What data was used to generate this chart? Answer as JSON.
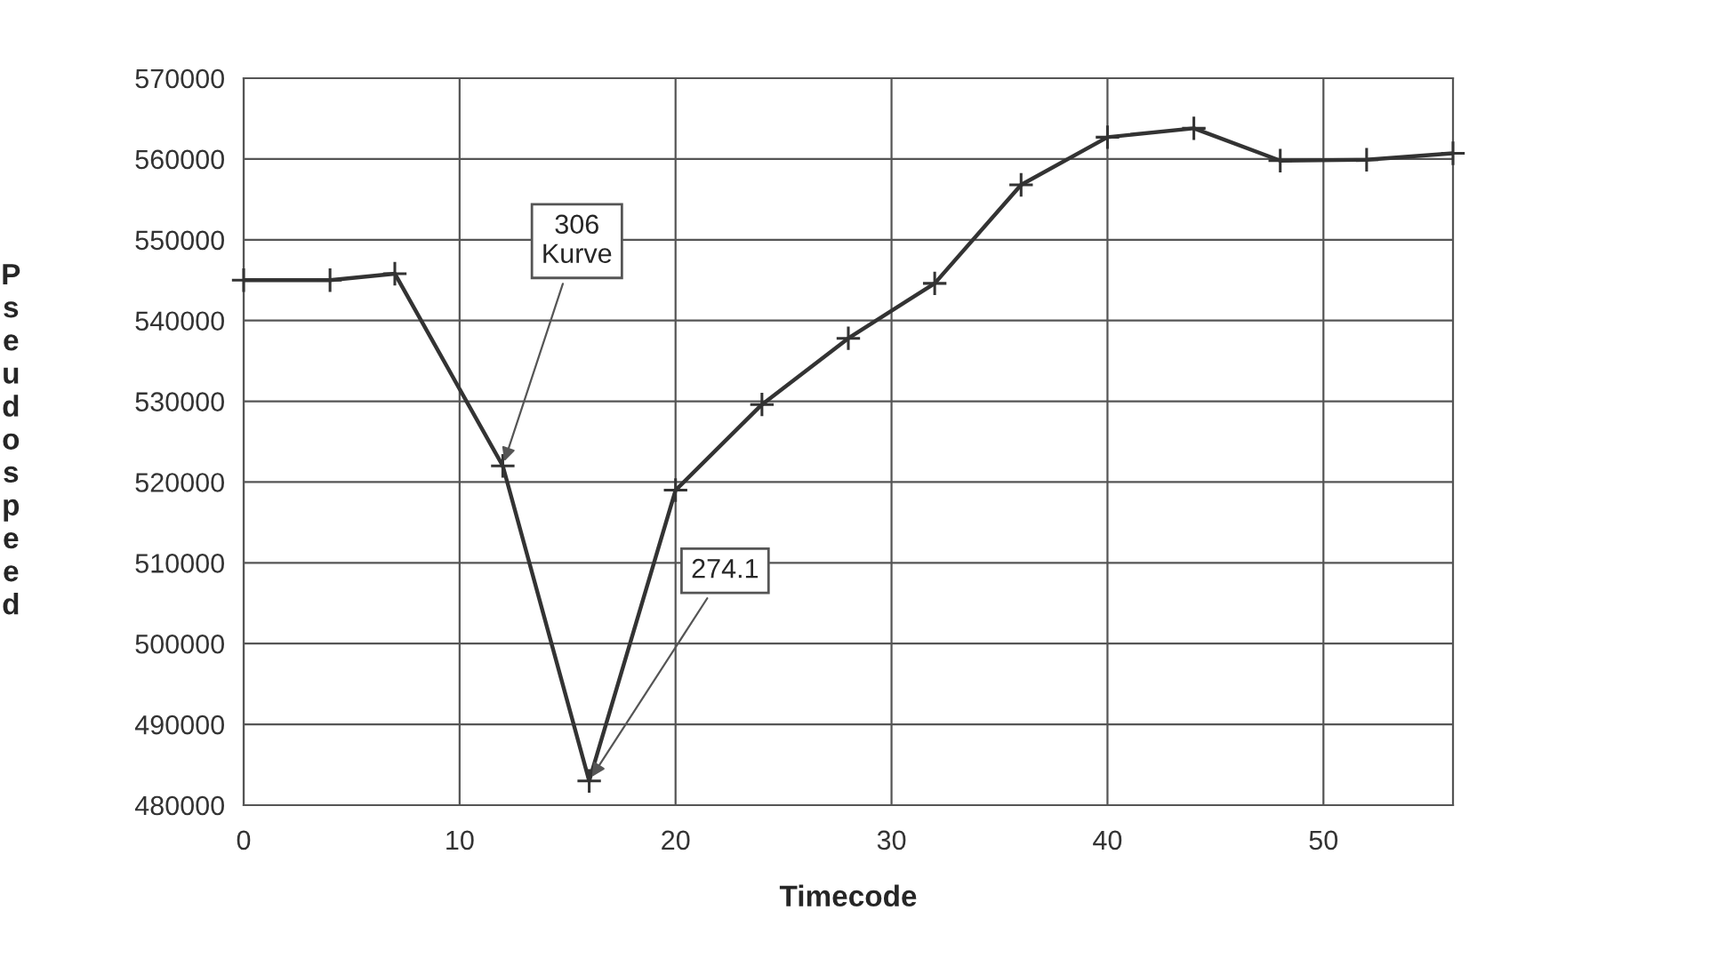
{
  "chart_data": {
    "type": "line",
    "xlabel": "Timecode",
    "ylabel": "Pseudospeed",
    "x": [
      0,
      4,
      7,
      12,
      16,
      20,
      24,
      28,
      32,
      36,
      40,
      44,
      48,
      52,
      56
    ],
    "series": [
      {
        "color": "#333333",
        "values": [
          545000,
          545000,
          545800,
          522000,
          483000,
          519000,
          529600,
          537800,
          544600,
          556800,
          562700,
          563800,
          559800,
          559900,
          560700
        ]
      }
    ],
    "xlim": [
      0,
      56
    ],
    "xticks": [
      0,
      10,
      20,
      30,
      40,
      50
    ],
    "ylim": [
      480000,
      570000
    ],
    "yticks": [
      480000,
      490000,
      500000,
      510000,
      520000,
      530000,
      540000,
      550000,
      560000,
      570000
    ],
    "grid": true,
    "marker": "cross",
    "line_style": "solid",
    "legend": false,
    "annotations": [
      {
        "text": "306\nKurve",
        "x": 12,
        "y": 522000
      },
      {
        "text": "274.1",
        "x": 16,
        "y": 483000
      }
    ]
  }
}
